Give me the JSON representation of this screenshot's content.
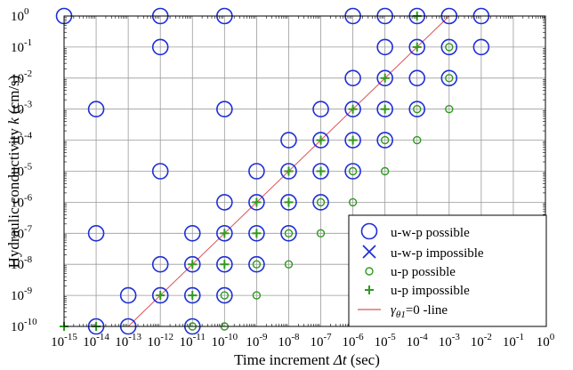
{
  "chart_data": {
    "type": "scatter",
    "x_scale": "log",
    "y_scale": "log",
    "xlim": [
      1e-15,
      1
    ],
    "ylim": [
      1e-10,
      1
    ],
    "grid": true,
    "legend_placement": "bottom-right",
    "xlabel": {
      "prefix": "Time increment ",
      "symbol": "Δt",
      "suffix": " (sec)"
    },
    "ylabel": {
      "prefix": "Hydraulic conductivity ",
      "symbol": "k",
      "suffix": " (cm/s)"
    },
    "x_ticks": [
      {
        "base": "10",
        "exp": "-15"
      },
      {
        "base": "10",
        "exp": "-14"
      },
      {
        "base": "10",
        "exp": "-13"
      },
      {
        "base": "10",
        "exp": "-12"
      },
      {
        "base": "10",
        "exp": "-11"
      },
      {
        "base": "10",
        "exp": "-10"
      },
      {
        "base": "10",
        "exp": "-9"
      },
      {
        "base": "10",
        "exp": "-8"
      },
      {
        "base": "10",
        "exp": "-7"
      },
      {
        "base": "10",
        "exp": "-6"
      },
      {
        "base": "10",
        "exp": "-5"
      },
      {
        "base": "10",
        "exp": "-4"
      },
      {
        "base": "10",
        "exp": "-3"
      },
      {
        "base": "10",
        "exp": "-2"
      },
      {
        "base": "10",
        "exp": "-1"
      },
      {
        "base": "10",
        "exp": "0"
      }
    ],
    "y_ticks": [
      {
        "base": "10",
        "exp": "0"
      },
      {
        "base": "10",
        "exp": "-1"
      },
      {
        "base": "10",
        "exp": "-2"
      },
      {
        "base": "10",
        "exp": "-3"
      },
      {
        "base": "10",
        "exp": "-4"
      },
      {
        "base": "10",
        "exp": "-5"
      },
      {
        "base": "10",
        "exp": "-6"
      },
      {
        "base": "10",
        "exp": "-7"
      },
      {
        "base": "10",
        "exp": "-8"
      },
      {
        "base": "10",
        "exp": "-9"
      },
      {
        "base": "10",
        "exp": "-10"
      }
    ],
    "series": [
      {
        "name": "u-w-p possible",
        "marker": "circle-large",
        "color": "#1f2fd6",
        "points": [
          [
            1e-15,
            1
          ],
          [
            1e-12,
            1
          ],
          [
            1e-10,
            1
          ],
          [
            1e-06,
            1
          ],
          [
            1e-05,
            1
          ],
          [
            0.0001,
            1
          ],
          [
            0.001,
            1
          ],
          [
            0.01,
            1
          ],
          [
            1e-12,
            0.1
          ],
          [
            1e-05,
            0.1
          ],
          [
            0.0001,
            0.1
          ],
          [
            0.001,
            0.1
          ],
          [
            0.01,
            0.1
          ],
          [
            1e-06,
            0.01
          ],
          [
            1e-05,
            0.01
          ],
          [
            0.0001,
            0.01
          ],
          [
            0.001,
            0.01
          ],
          [
            1e-14,
            0.001
          ],
          [
            1e-10,
            0.001
          ],
          [
            1e-07,
            0.001
          ],
          [
            1e-06,
            0.001
          ],
          [
            1e-05,
            0.001
          ],
          [
            0.0001,
            0.001
          ],
          [
            1e-08,
            0.0001
          ],
          [
            1e-07,
            0.0001
          ],
          [
            1e-06,
            0.0001
          ],
          [
            1e-05,
            0.0001
          ],
          [
            1e-12,
            1e-05
          ],
          [
            1e-09,
            1e-05
          ],
          [
            1e-08,
            1e-05
          ],
          [
            1e-07,
            1e-05
          ],
          [
            1e-06,
            1e-05
          ],
          [
            1e-10,
            1e-06
          ],
          [
            1e-09,
            1e-06
          ],
          [
            1e-08,
            1e-06
          ],
          [
            1e-07,
            1e-06
          ],
          [
            1e-14,
            1e-07
          ],
          [
            1e-11,
            1e-07
          ],
          [
            1e-10,
            1e-07
          ],
          [
            1e-09,
            1e-07
          ],
          [
            1e-08,
            1e-07
          ],
          [
            1e-12,
            1e-08
          ],
          [
            1e-11,
            1e-08
          ],
          [
            1e-10,
            1e-08
          ],
          [
            1e-09,
            1e-08
          ],
          [
            1e-13,
            1e-09
          ],
          [
            1e-12,
            1e-09
          ],
          [
            1e-11,
            1e-09
          ],
          [
            1e-10,
            1e-09
          ],
          [
            1e-14,
            1e-10
          ],
          [
            1e-13,
            1e-10
          ],
          [
            1e-11,
            1e-10
          ]
        ]
      },
      {
        "name": "u-w-p impossible",
        "marker": "x",
        "color": "#1f2fd6",
        "points": []
      },
      {
        "name": "u-p possible",
        "marker": "circle-small",
        "color": "#2e9a1e",
        "points": [
          [
            0.001,
            0.1
          ],
          [
            0.001,
            0.01
          ],
          [
            0.0001,
            0.001
          ],
          [
            0.001,
            0.001
          ],
          [
            1e-05,
            0.0001
          ],
          [
            0.0001,
            0.0001
          ],
          [
            1e-06,
            1e-05
          ],
          [
            1e-05,
            1e-05
          ],
          [
            1e-07,
            1e-06
          ],
          [
            1e-06,
            1e-06
          ],
          [
            1e-08,
            1e-07
          ],
          [
            1e-07,
            1e-07
          ],
          [
            1e-09,
            1e-08
          ],
          [
            1e-08,
            1e-08
          ],
          [
            1e-10,
            1e-09
          ],
          [
            1e-09,
            1e-09
          ],
          [
            1e-11,
            1e-10
          ],
          [
            1e-10,
            1e-10
          ]
        ]
      },
      {
        "name": "u-p impossible",
        "marker": "plus",
        "color": "#2e9a1e",
        "points": [
          [
            0.0001,
            1
          ],
          [
            0.0001,
            0.1
          ],
          [
            1e-05,
            0.01
          ],
          [
            1e-06,
            0.001
          ],
          [
            1e-05,
            0.001
          ],
          [
            1e-07,
            0.0001
          ],
          [
            1e-06,
            0.0001
          ],
          [
            1e-08,
            1e-05
          ],
          [
            1e-07,
            1e-05
          ],
          [
            1e-09,
            1e-06
          ],
          [
            1e-08,
            1e-06
          ],
          [
            1e-10,
            1e-07
          ],
          [
            1e-09,
            1e-07
          ],
          [
            1e-11,
            1e-08
          ],
          [
            1e-10,
            1e-08
          ],
          [
            1e-12,
            1e-09
          ],
          [
            1e-11,
            1e-09
          ],
          [
            1e-15,
            1e-10
          ],
          [
            1e-14,
            1e-10
          ]
        ]
      },
      {
        "name": "γθ1=0 -line",
        "legend_label": {
          "symbol": "γ",
          "sub": "θ1",
          "suffix": "=0 -line"
        },
        "marker": "line",
        "color": "#d9535a",
        "points": [
          [
            1e-13,
            1e-10
          ],
          [
            0.001,
            1
          ]
        ]
      }
    ]
  }
}
